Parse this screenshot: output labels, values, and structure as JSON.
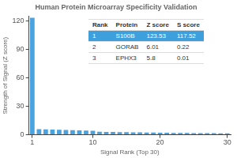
{
  "chart_data": {
    "type": "bar",
    "title": "Human Protein Microarray Specificity Validation",
    "x_label": "Signal Rank (Top 30)",
    "y_label": "Strength of Signal (Z score)",
    "categories": [
      "1",
      null,
      null,
      null,
      null,
      null,
      null,
      null,
      null,
      "10",
      null,
      null,
      null,
      null,
      null,
      null,
      null,
      null,
      null,
      "20",
      null,
      null,
      null,
      null,
      null,
      null,
      null,
      null,
      null,
      "30"
    ],
    "values": [
      123.53,
      6.01,
      5.8,
      5.5,
      5.3,
      5.1,
      4.9,
      4.7,
      4.5,
      4.3,
      3.2,
      3.0,
      2.9,
      2.8,
      2.7,
      2.6,
      2.5,
      2.4,
      2.3,
      2.2,
      2.1,
      2.0,
      1.9,
      1.9,
      1.8,
      1.8,
      1.7,
      1.7,
      1.6,
      1.6
    ],
    "color": "#4aa3df",
    "ylim": [
      0,
      125
    ],
    "yticks": [
      0,
      30,
      60,
      90,
      120
    ],
    "grid": false,
    "table": {
      "header": [
        "Rank",
        "Protein",
        "Z score",
        "S score"
      ],
      "rows": [
        [
          1,
          "S100B",
          123.53,
          117.52
        ],
        [
          2,
          "GORAB",
          6.01,
          0.22
        ],
        [
          3,
          "EPHX3",
          5.8,
          0.01
        ]
      ]
    }
  }
}
